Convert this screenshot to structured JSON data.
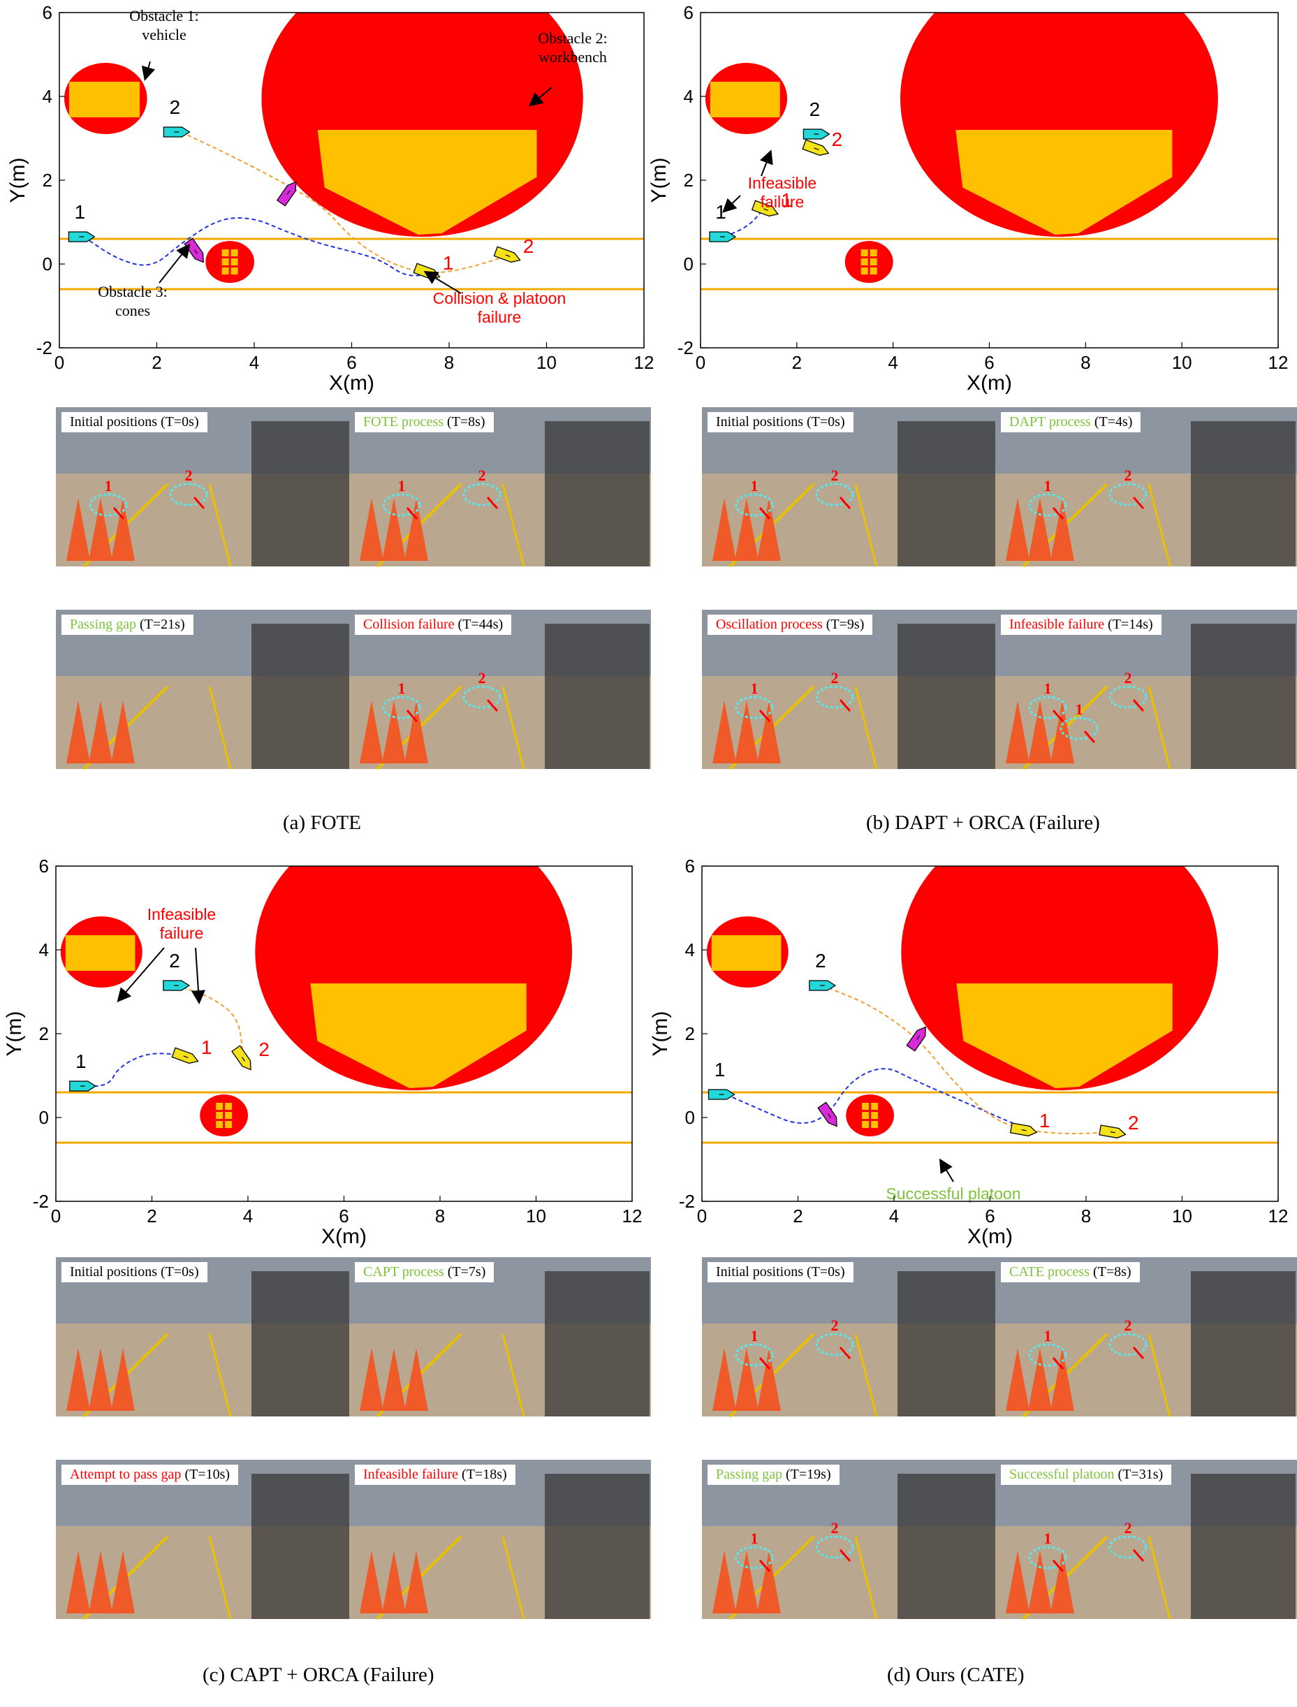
{
  "chart_data": [
    {
      "type": "scatter",
      "panel": "a",
      "caption": "(a) FOTE",
      "xlabel": "X(m)",
      "ylabel": "Y(m)",
      "xlim": [
        0,
        12
      ],
      "ylim": [
        -2,
        6
      ],
      "xticks": [
        "0",
        "2",
        "4",
        "6",
        "8",
        "10",
        "12"
      ],
      "yticks": [
        "-2",
        "0",
        "2",
        "4",
        "6"
      ],
      "lanes_y": [
        0.6,
        -0.6
      ],
      "obstacles": [
        {
          "shape": "circle",
          "cx": 0.95,
          "cy": 3.95,
          "r": 0.85,
          "rect": [
            0.2,
            3.5,
            1.65,
            4.35
          ]
        },
        {
          "shape": "circle",
          "cx": 7.45,
          "cy": 3.95,
          "r": 3.3,
          "rect": [
            5.3,
            3.2,
            9.8,
            0.7
          ]
        },
        {
          "shape": "cones",
          "cx": 3.5,
          "cy": 0.05,
          "r": 0.5
        }
      ],
      "paths": [
        {
          "color": "blue",
          "points": [
            [
              0.5,
              0.65
            ],
            [
              1.2,
              0.1
            ],
            [
              1.9,
              -0.1
            ],
            [
              2.5,
              0.5
            ],
            [
              3.3,
              1.1
            ],
            [
              4.0,
              1.1
            ],
            [
              4.6,
              0.8
            ],
            [
              5.3,
              0.5
            ],
            [
              6.0,
              0.3
            ],
            [
              6.6,
              0.1
            ],
            [
              7.1,
              -0.3
            ],
            [
              7.6,
              -0.25
            ]
          ]
        },
        {
          "color": "orange",
          "points": [
            [
              2.5,
              3.15
            ],
            [
              3.5,
              2.6
            ],
            [
              4.5,
              2.0
            ],
            [
              5.4,
              1.4
            ],
            [
              6.0,
              0.6
            ],
            [
              6.8,
              0.0
            ],
            [
              7.6,
              -0.25
            ],
            [
              8.4,
              -0.1
            ],
            [
              9.2,
              0.2
            ]
          ]
        }
      ],
      "robots": [
        {
          "x": 0.45,
          "y": 0.65,
          "angle": 0,
          "color": "cyan",
          "label": "1",
          "label_color": "black"
        },
        {
          "x": 2.4,
          "y": 3.15,
          "angle": 0,
          "color": "cyan",
          "label": "2",
          "label_color": "black"
        },
        {
          "x": 2.8,
          "y": 0.3,
          "angle": -55,
          "color": "magenta"
        },
        {
          "x": 4.7,
          "y": 1.7,
          "angle": 55,
          "color": "magenta"
        },
        {
          "x": 7.55,
          "y": -0.2,
          "angle": -20,
          "color": "yellow",
          "label": "1",
          "label_color": "red"
        },
        {
          "x": 9.2,
          "y": 0.2,
          "angle": -20,
          "color": "yellow",
          "label": "2",
          "label_color": "red"
        }
      ],
      "annotations": [
        {
          "text": "Obstacle 1:\nvehicle",
          "color": "black"
        },
        {
          "text": "Obstacle 2:\nworkbench",
          "color": "black"
        },
        {
          "text": "Obstacle 3:\ncones",
          "color": "black"
        },
        {
          "text": "Collision & platoon\nfailure",
          "color": "red"
        }
      ]
    },
    {
      "type": "scatter",
      "panel": "b",
      "caption": "(b) DAPT + ORCA (Failure)",
      "xlabel": "X(m)",
      "ylabel": "Y(m)",
      "xlim": [
        0,
        12
      ],
      "ylim": [
        -2,
        6
      ],
      "xticks": [
        "0",
        "2",
        "4",
        "6",
        "8",
        "10",
        "12"
      ],
      "yticks": [
        "-2",
        "0",
        "2",
        "4",
        "6"
      ],
      "lanes_y": [
        0.6,
        -0.6
      ],
      "obstacles": [
        {
          "shape": "circle",
          "cx": 0.95,
          "cy": 3.95,
          "r": 0.85,
          "rect": [
            0.2,
            3.5,
            1.65,
            4.35
          ]
        },
        {
          "shape": "circle",
          "cx": 7.45,
          "cy": 3.95,
          "r": 3.3,
          "rect": [
            5.3,
            3.2,
            9.8,
            0.7
          ]
        },
        {
          "shape": "cones",
          "cx": 3.5,
          "cy": 0.05,
          "r": 0.5
        }
      ],
      "paths": [
        {
          "color": "blue",
          "points": [
            [
              0.5,
              0.65
            ],
            [
              1.0,
              0.9
            ],
            [
              1.3,
              1.3
            ]
          ]
        }
      ],
      "robots": [
        {
          "x": 0.45,
          "y": 0.65,
          "angle": 0,
          "color": "cyan",
          "label": "1",
          "label_color": "black"
        },
        {
          "x": 2.4,
          "y": 3.1,
          "angle": 0,
          "color": "cyan",
          "label": "2",
          "label_color": "black"
        },
        {
          "x": 1.35,
          "y": 1.3,
          "angle": -20,
          "color": "yellow",
          "label": "1",
          "label_color": "red"
        },
        {
          "x": 2.4,
          "y": 2.75,
          "angle": -20,
          "color": "yellow",
          "label": "2",
          "label_color": "red"
        }
      ],
      "annotations": [
        {
          "text": "Infeasible\nfailure",
          "color": "red"
        }
      ]
    },
    {
      "type": "scatter",
      "panel": "c",
      "caption": "(c) CAPT + ORCA (Failure)",
      "xlabel": "X(m)",
      "ylabel": "Y(m)",
      "xlim": [
        0,
        12
      ],
      "ylim": [
        -2,
        6
      ],
      "xticks": [
        "0",
        "2",
        "4",
        "6",
        "8",
        "10",
        "12"
      ],
      "yticks": [
        "-2",
        "0",
        "2",
        "4",
        "6"
      ],
      "lanes_y": [
        0.6,
        -0.6
      ],
      "obstacles": [
        {
          "shape": "circle",
          "cx": 0.95,
          "cy": 3.95,
          "r": 0.85,
          "rect": [
            0.2,
            3.5,
            1.65,
            4.35
          ]
        },
        {
          "shape": "circle",
          "cx": 7.45,
          "cy": 3.95,
          "r": 3.3,
          "rect": [
            5.3,
            3.2,
            9.8,
            0.7
          ]
        },
        {
          "shape": "cones",
          "cx": 3.5,
          "cy": 0.05,
          "r": 0.5
        }
      ],
      "paths": [
        {
          "color": "blue",
          "points": [
            [
              0.5,
              0.75
            ],
            [
              1.1,
              0.75
            ],
            [
              1.3,
              1.2
            ],
            [
              1.9,
              1.55
            ],
            [
              2.6,
              1.5
            ]
          ]
        },
        {
          "color": "orange",
          "points": [
            [
              2.5,
              3.15
            ],
            [
              3.2,
              2.9
            ],
            [
              3.8,
              2.4
            ],
            [
              3.9,
              1.5
            ]
          ]
        }
      ],
      "robots": [
        {
          "x": 0.55,
          "y": 0.75,
          "angle": 0,
          "color": "cyan",
          "label": "1",
          "label_color": "black"
        },
        {
          "x": 2.5,
          "y": 3.15,
          "angle": 0,
          "color": "cyan",
          "label": "2",
          "label_color": "black"
        },
        {
          "x": 2.7,
          "y": 1.45,
          "angle": -20,
          "color": "yellow",
          "label": "1",
          "label_color": "red"
        },
        {
          "x": 3.9,
          "y": 1.4,
          "angle": -55,
          "color": "yellow",
          "label": "2",
          "label_color": "red"
        }
      ],
      "annotations": [
        {
          "text": "Infeasible\nfailure",
          "color": "red"
        }
      ]
    },
    {
      "type": "scatter",
      "panel": "d",
      "caption": "(d) Ours (CATE)",
      "xlabel": "X(m)",
      "ylabel": "Y(m)",
      "xlim": [
        0,
        12
      ],
      "ylim": [
        -2,
        6
      ],
      "xticks": [
        "0",
        "2",
        "4",
        "6",
        "8",
        "10",
        "12"
      ],
      "yticks": [
        "-2",
        "0",
        "2",
        "4",
        "6"
      ],
      "lanes_y": [
        0.6,
        -0.6
      ],
      "obstacles": [
        {
          "shape": "circle",
          "cx": 0.95,
          "cy": 3.95,
          "r": 0.85,
          "rect": [
            0.2,
            3.5,
            1.65,
            4.35
          ]
        },
        {
          "shape": "circle",
          "cx": 7.45,
          "cy": 3.95,
          "r": 3.3,
          "rect": [
            5.3,
            3.2,
            9.8,
            0.7
          ]
        },
        {
          "shape": "cones",
          "cx": 3.5,
          "cy": 0.05,
          "r": 0.5
        }
      ],
      "paths": [
        {
          "color": "blue",
          "points": [
            [
              0.5,
              0.55
            ],
            [
              1.2,
              0.2
            ],
            [
              2.0,
              -0.2
            ],
            [
              2.6,
              0.0
            ],
            [
              3.1,
              0.9
            ],
            [
              3.8,
              1.25
            ],
            [
              4.4,
              0.9
            ],
            [
              5.2,
              0.5
            ],
            [
              6.0,
              0.1
            ],
            [
              6.7,
              -0.25
            ]
          ]
        },
        {
          "color": "orange",
          "points": [
            [
              2.5,
              3.15
            ],
            [
              3.5,
              2.7
            ],
            [
              4.5,
              1.9
            ],
            [
              5.2,
              0.9
            ],
            [
              6.0,
              0.0
            ],
            [
              6.7,
              -0.3
            ],
            [
              7.6,
              -0.4
            ],
            [
              8.5,
              -0.35
            ]
          ]
        }
      ],
      "robots": [
        {
          "x": 0.4,
          "y": 0.55,
          "angle": 0,
          "color": "cyan",
          "label": "1",
          "label_color": "black"
        },
        {
          "x": 2.5,
          "y": 3.15,
          "angle": 0,
          "color": "cyan",
          "label": "2",
          "label_color": "black"
        },
        {
          "x": 2.65,
          "y": 0.05,
          "angle": -55,
          "color": "magenta"
        },
        {
          "x": 4.5,
          "y": 1.9,
          "angle": 55,
          "color": "magenta"
        },
        {
          "x": 6.7,
          "y": -0.3,
          "angle": -10,
          "color": "yellow",
          "label": "1",
          "label_color": "red"
        },
        {
          "x": 8.55,
          "y": -0.35,
          "angle": -10,
          "color": "yellow",
          "label": "2",
          "label_color": "red"
        }
      ],
      "annotations": [
        {
          "text": "Successful platoon",
          "color": "green"
        }
      ]
    }
  ],
  "colors": {
    "obstacle_red": "#ff0000",
    "obstacle_yellow": "#ffc000",
    "lane": "#f2a900",
    "path_blue": "#2234e0",
    "path_orange": "#f0a030",
    "robot_cyan": "#22d8d8",
    "robot_magenta": "#d82ad8",
    "robot_yellow": "#f4e21a",
    "label_red": "#ff0000",
    "label_green": "#7dc43a"
  },
  "photos": {
    "a": [
      {
        "status": "Initial positions",
        "time": "(T=0s)",
        "status_color": "black"
      },
      {
        "status": "FOTE process",
        "time": "(T=8s)",
        "status_color": "green"
      },
      {
        "status": "Passing gap",
        "time": "(T=21s)",
        "status_color": "green"
      },
      {
        "status": "Collision failure",
        "time": "(T=44s)",
        "status_color": "red"
      }
    ],
    "b": [
      {
        "status": "Initial positions",
        "time": "(T=0s)",
        "status_color": "black"
      },
      {
        "status": "DAPT process",
        "time": "(T=4s)",
        "status_color": "green"
      },
      {
        "status": "Oscillation process",
        "time": "(T=9s)",
        "status_color": "red"
      },
      {
        "status": "Infeasible failure",
        "time": "(T=14s)",
        "status_color": "red"
      }
    ],
    "c": [
      {
        "status": "Initial positions",
        "time": "(T=0s)",
        "status_color": "black"
      },
      {
        "status": "CAPT process",
        "time": "(T=7s)",
        "status_color": "green"
      },
      {
        "status": "Attempt to pass gap",
        "time": "(T=10s)",
        "status_color": "red"
      },
      {
        "status": "Infeasible failure",
        "time": "(T=18s)",
        "status_color": "red"
      }
    ],
    "d": [
      {
        "status": "Initial positions",
        "time": "(T=0s)",
        "status_color": "black"
      },
      {
        "status": "CATE process",
        "time": "(T=8s)",
        "status_color": "green"
      },
      {
        "status": "Passing gap",
        "time": "(T=19s)",
        "status_color": "green"
      },
      {
        "status": "Successful platoon",
        "time": "(T=31s)",
        "status_color": "green"
      }
    ]
  },
  "photo_markers": {
    "a": [
      [
        "1",
        "2"
      ],
      [
        "1",
        "2"
      ],
      [],
      [
        "1",
        "2"
      ]
    ],
    "b": [
      [
        "1",
        "2"
      ],
      [
        "1",
        "2"
      ],
      [
        "1",
        "2"
      ],
      [
        "1",
        "2",
        "1"
      ]
    ],
    "c": [
      [],
      [],
      [],
      []
    ],
    "d": [
      [
        "1",
        "2"
      ],
      [
        "1",
        "2"
      ],
      [
        "1",
        "2"
      ],
      [
        "1",
        "2"
      ]
    ]
  }
}
